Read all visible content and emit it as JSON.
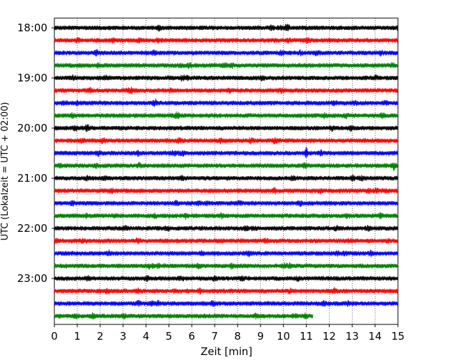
{
  "chart_data": {
    "type": "line",
    "title": "",
    "xlabel": "Zeit  [min]",
    "ylabel": "UTC (Lokalzeit = UTC + 02:00)",
    "xlim": [
      0,
      15
    ],
    "x_ticks": [
      "0",
      "1",
      "2",
      "3",
      "4",
      "5",
      "6",
      "7",
      "8",
      "9",
      "10",
      "11",
      "12",
      "13",
      "14",
      "15"
    ],
    "y_tick_labels": [
      "18:00",
      "19:00",
      "20:00",
      "21:00",
      "22:00",
      "23:00"
    ],
    "grid": "vertical-dotted",
    "colors": [
      "#000000",
      "#ff0000",
      "#0000ff",
      "#008000"
    ],
    "trace_rows": [
      "18:00",
      "18:15",
      "18:30",
      "18:45",
      "19:00",
      "19:15",
      "19:30",
      "19:45",
      "20:00",
      "20:15",
      "20:30",
      "20:45",
      "21:00",
      "21:15",
      "21:30",
      "21:45",
      "22:00",
      "22:15",
      "22:30",
      "22:45",
      "23:00",
      "23:15",
      "23:30",
      "23:45"
    ],
    "trace_end_min": [
      15,
      15,
      15,
      15,
      15,
      15,
      15,
      15,
      15,
      15,
      15,
      15,
      15,
      15,
      15,
      15,
      15,
      15,
      15,
      15,
      15,
      15,
      15,
      11.3
    ],
    "events": [
      {
        "row": "20:30",
        "x": 11.0,
        "amplitude": "large"
      },
      {
        "row": "22:45",
        "x": 4.3,
        "amplitude": "medium"
      },
      {
        "row": "19:30",
        "x": 1.0,
        "amplitude": "medium"
      },
      {
        "row": "21:45",
        "x": 1.4,
        "amplitude": "medium"
      }
    ]
  }
}
